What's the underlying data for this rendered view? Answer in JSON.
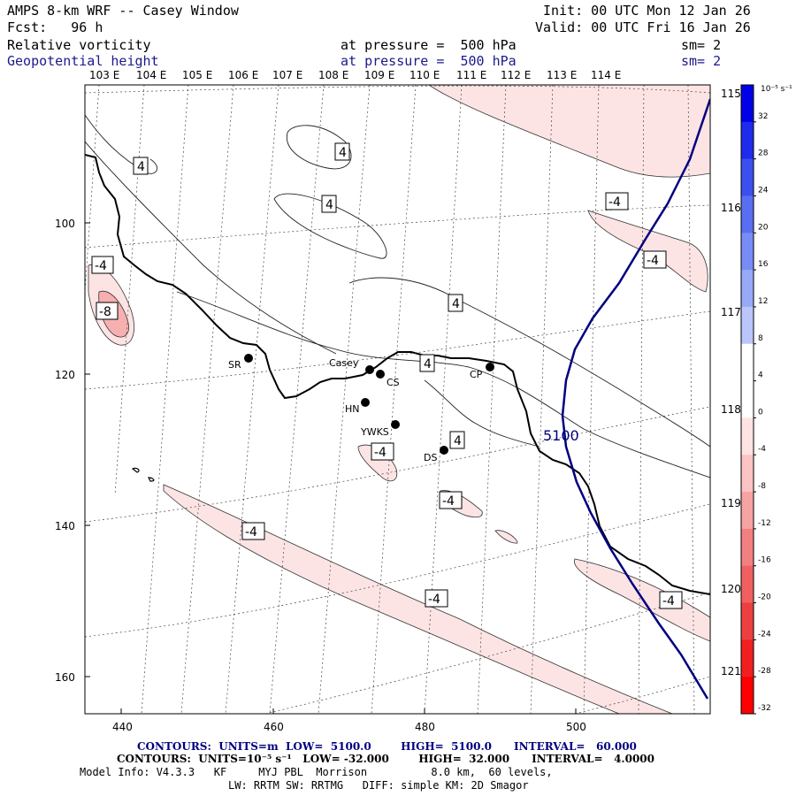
{
  "header": {
    "title": "AMPS 8-km WRF -- Casey Window",
    "fcst": "Fcst:   96 h",
    "init": "Init: 00 UTC Mon 12 Jan 26",
    "valid": "Valid: 00 UTC Fri 16 Jan 26",
    "field1": {
      "name": "Relative vorticity",
      "pressure": "at pressure =  500 hPa",
      "sm": "sm= 2"
    },
    "field2": {
      "name": "Geopotential height",
      "pressure": "at pressure =  500 hPa",
      "sm": "sm= 2"
    }
  },
  "lon_top": [
    "103 E",
    "104 E",
    "105 E",
    "106 E",
    "107 E",
    "108 E",
    "109 E",
    "110 E",
    "111 E",
    "112 E",
    "113 E",
    "114 E"
  ],
  "lon_right": [
    "115 E",
    "116 E",
    "117 E",
    "118 E",
    "119 E",
    "120 E",
    "121 E"
  ],
  "y_ticks": [
    "100",
    "120",
    "140",
    "160"
  ],
  "x_ticks": [
    "440",
    "460",
    "480",
    "500"
  ],
  "stations": [
    {
      "name": "SR"
    },
    {
      "name": "Casey"
    },
    {
      "name": "CS"
    },
    {
      "name": "HN"
    },
    {
      "name": "YWKS"
    },
    {
      "name": "DS"
    },
    {
      "name": "CP"
    }
  ],
  "contour_labels": {
    "pos": [
      "4",
      "4",
      "4",
      "4",
      "4",
      "4"
    ],
    "neg": [
      "-4",
      "-8",
      "-4",
      "-4",
      "-4",
      "-4",
      "-4",
      "-4",
      "-4"
    ],
    "height": "5100"
  },
  "colorbar": {
    "unit": "10⁻⁵ s⁻¹",
    "labels": [
      "32",
      "28",
      "24",
      "20",
      "16",
      "12",
      "8",
      "4",
      "0",
      "-4",
      "-8",
      "-12",
      "-16",
      "-20",
      "-24",
      "-28",
      "-32"
    ],
    "colors": [
      "#0000e6",
      "#1e2bec",
      "#3c50f0",
      "#5a6ef2",
      "#788cf5",
      "#96aaf8",
      "#bac6fb",
      "#ffffff",
      "#ffffff",
      "#ffe3e3",
      "#fbc3c3",
      "#f7a3a3",
      "#f38080",
      "#f06060",
      "#ec4040",
      "#f02020",
      "#ff0000"
    ]
  },
  "footer": {
    "contours1": "CONTOURS:  UNITS=m  LOW=  5100.0        HIGH=  5100.0      INTERVAL=   60.000",
    "contours2": "CONTOURS:  UNITS=10⁻⁵ s⁻¹   LOW= -32.000        HIGH=  32.000      INTERVAL=   4.0000",
    "model1": "Model Info: V4.3.3   KF     MYJ PBL  Morrison          8.0 km,  60 levels,",
    "model2": "LW: RRTM SW: RRTMG   DIFF: simple KM: 2D Smagor"
  }
}
